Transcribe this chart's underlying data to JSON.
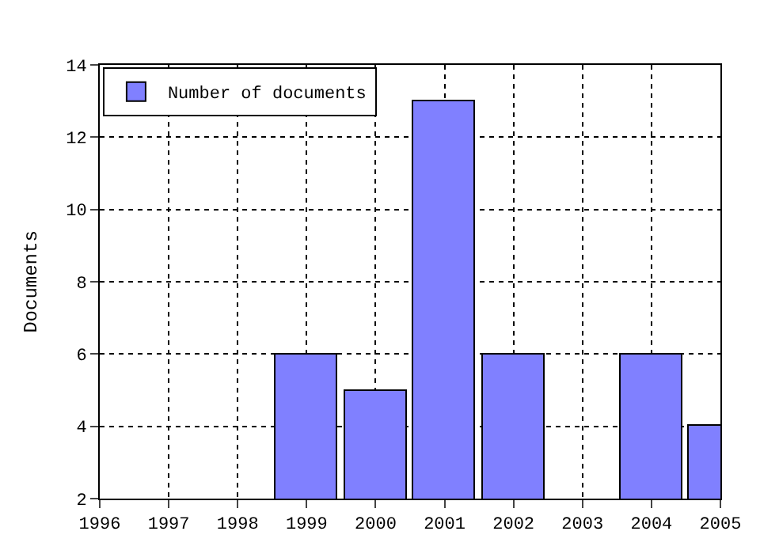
{
  "chart_data": {
    "type": "bar",
    "ylabel": "Documents",
    "x": [
      1999,
      2000,
      2001,
      2002,
      2004,
      2005
    ],
    "series": [
      {
        "name": "Number of documents",
        "color": "#8080ff",
        "values": [
          6,
          5,
          13,
          6,
          6,
          4
        ]
      }
    ],
    "xlim": [
      1996,
      2005
    ],
    "xticks": [
      1996,
      1997,
      1998,
      1999,
      2000,
      2001,
      2002,
      2003,
      2004,
      2005
    ],
    "ylim": [
      2,
      14
    ],
    "yticks": [
      2,
      4,
      6,
      8,
      10,
      12,
      14
    ],
    "grid": true,
    "legend": "top left"
  }
}
